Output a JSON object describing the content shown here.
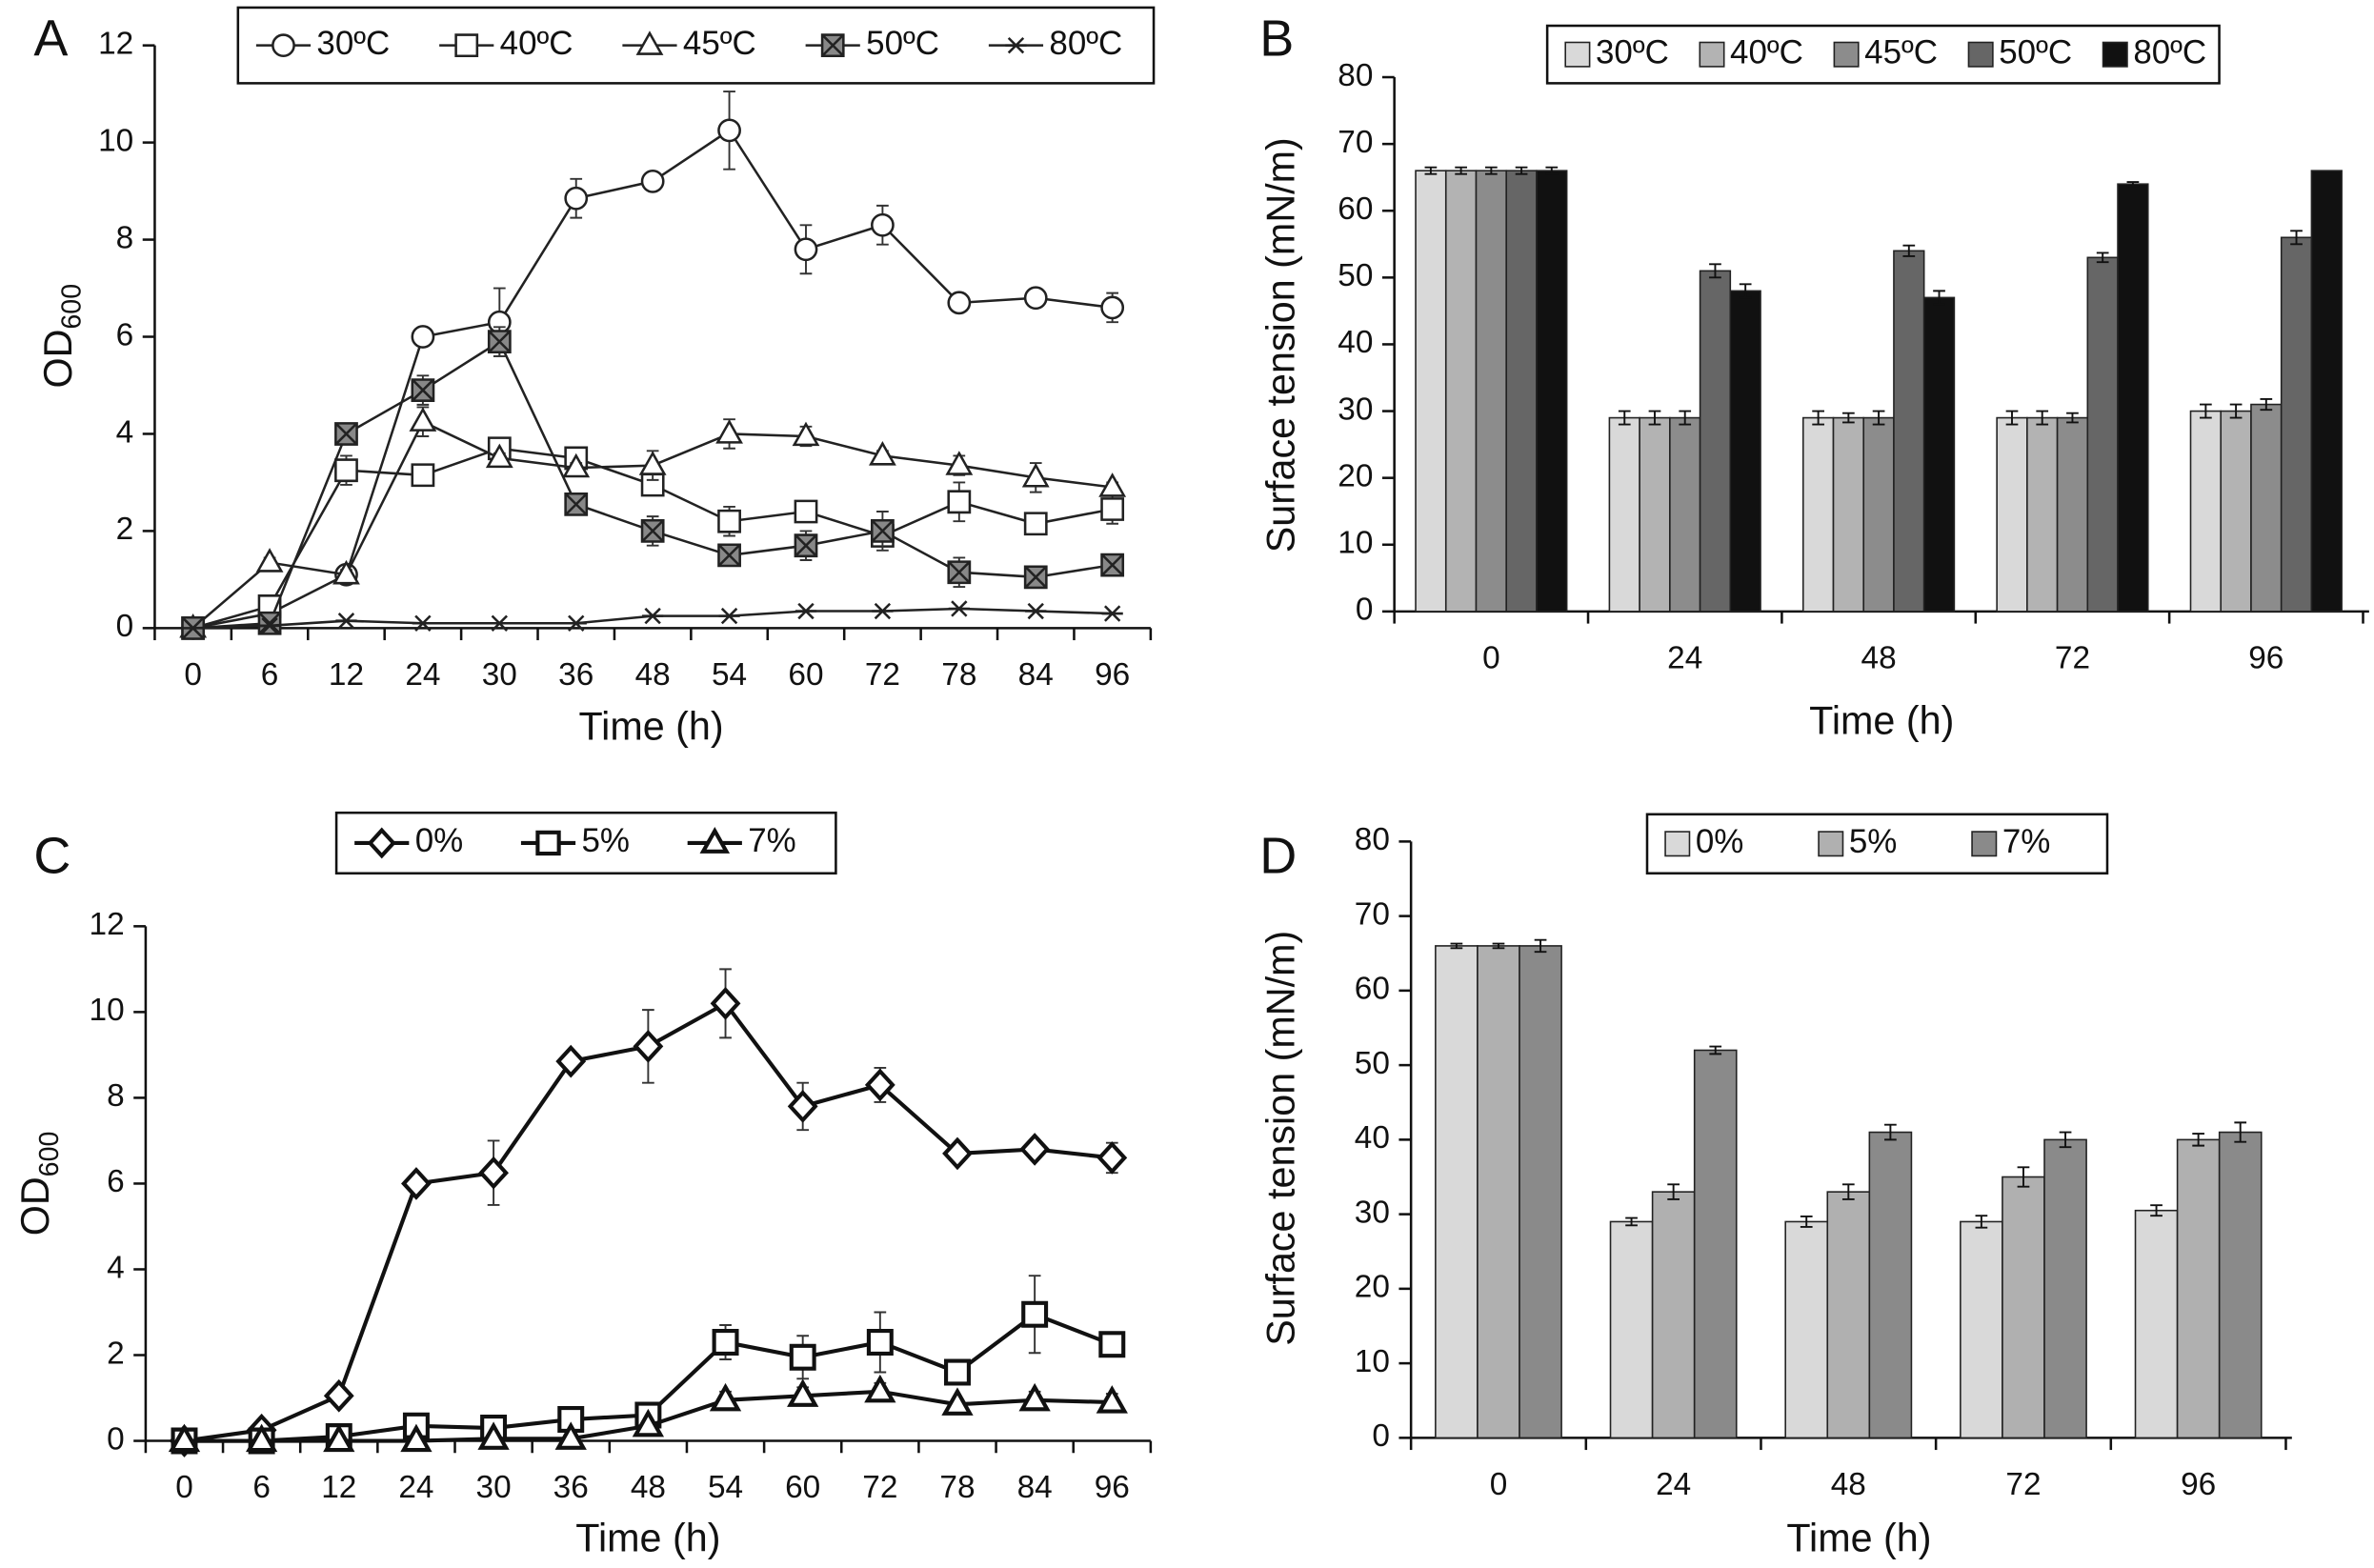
{
  "chart_data": [
    {
      "type": "line",
      "panel": "A",
      "ylabel": "OD",
      "ylabel_subscript": "600",
      "xlabel": "Time (h)",
      "categories": [
        "0",
        "6",
        "12",
        "24",
        "30",
        "36",
        "48",
        "54",
        "60",
        "72",
        "78",
        "84",
        "96"
      ],
      "ylim": [
        0,
        12
      ],
      "yticks": [
        0,
        2,
        4,
        6,
        8,
        10,
        12
      ],
      "series": [
        {
          "name": "30ºC",
          "color": "#222222",
          "marker": "circle",
          "values": [
            0,
            0.3,
            1.1,
            6.0,
            6.3,
            8.85,
            9.2,
            10.25,
            7.8,
            8.3,
            6.7,
            6.8,
            6.6
          ],
          "errors": [
            0,
            0.1,
            0.1,
            0.1,
            0.7,
            0.4,
            0.1,
            0.8,
            0.5,
            0.4,
            0.1,
            0.1,
            0.3
          ]
        },
        {
          "name": "40ºC",
          "color": "#222222",
          "marker": "square",
          "values": [
            0,
            0.45,
            3.25,
            3.15,
            3.7,
            3.5,
            2.95,
            2.2,
            2.4,
            1.9,
            2.6,
            2.15,
            2.45
          ],
          "errors": [
            0,
            0.1,
            0.3,
            0.1,
            0.1,
            0.1,
            0.2,
            0.3,
            0.1,
            0.1,
            0.4,
            0.1,
            0.3
          ]
        },
        {
          "name": "45ºC",
          "color": "#222222",
          "marker": "triangle",
          "values": [
            0,
            1.35,
            1.1,
            4.25,
            3.5,
            3.3,
            3.35,
            4.0,
            3.95,
            3.55,
            3.35,
            3.1,
            2.9
          ],
          "errors": [
            0,
            0.1,
            0.1,
            0.3,
            0.1,
            0.1,
            0.3,
            0.3,
            0.2,
            0.1,
            0.2,
            0.3,
            0.1
          ]
        },
        {
          "name": "50ºC",
          "color": "#222222",
          "marker": "square-x",
          "values": [
            0,
            0.1,
            4.0,
            4.9,
            5.9,
            2.55,
            2.0,
            1.5,
            1.7,
            2.0,
            1.15,
            1.05,
            1.3
          ],
          "errors": [
            0,
            0.05,
            0.1,
            0.3,
            0.3,
            0.1,
            0.3,
            0.2,
            0.3,
            0.4,
            0.3,
            0.1,
            0.1
          ]
        },
        {
          "name": "80ºC",
          "color": "#222222",
          "marker": "asterisk",
          "values": [
            0,
            0.05,
            0.15,
            0.1,
            0.1,
            0.1,
            0.25,
            0.25,
            0.35,
            0.35,
            0.4,
            0.35,
            0.3
          ],
          "errors": [
            0,
            0,
            0,
            0,
            0,
            0,
            0,
            0,
            0,
            0,
            0,
            0,
            0
          ]
        }
      ]
    },
    {
      "type": "bar",
      "panel": "B",
      "ylabel": "Surface tension (mN/m)",
      "xlabel": "Time (h)",
      "categories": [
        "0",
        "24",
        "48",
        "72",
        "96"
      ],
      "ylim": [
        0,
        80
      ],
      "yticks": [
        0,
        10,
        20,
        30,
        40,
        50,
        60,
        70,
        80
      ],
      "series": [
        {
          "name": "30ºC",
          "color": "#d9d9d9",
          "values": [
            66,
            29,
            29,
            29,
            30
          ],
          "errors": [
            0.5,
            1,
            1,
            1,
            1
          ]
        },
        {
          "name": "40ºC",
          "color": "#b3b3b3",
          "values": [
            66,
            29,
            29,
            29,
            30
          ],
          "errors": [
            0.5,
            1,
            0.7,
            1,
            1
          ]
        },
        {
          "name": "45ºC",
          "color": "#8c8c8c",
          "values": [
            66,
            29,
            29,
            29,
            31
          ],
          "errors": [
            0.5,
            1,
            1,
            0.7,
            0.8
          ]
        },
        {
          "name": "50ºC",
          "color": "#666666",
          "values": [
            66,
            51,
            54,
            53,
            56
          ],
          "errors": [
            0.5,
            1,
            0.8,
            0.7,
            1
          ]
        },
        {
          "name": "80ºC",
          "color": "#111111",
          "values": [
            66,
            48,
            47,
            64,
            66
          ],
          "errors": [
            0.5,
            1,
            1,
            0.3,
            0
          ]
        }
      ]
    },
    {
      "type": "line",
      "panel": "C",
      "ylabel": "OD",
      "ylabel_subscript": "600",
      "xlabel": "Time (h)",
      "categories": [
        "0",
        "6",
        "12",
        "24",
        "30",
        "36",
        "48",
        "54",
        "60",
        "72",
        "78",
        "84",
        "96"
      ],
      "ylim": [
        0,
        12
      ],
      "yticks": [
        0,
        2,
        4,
        6,
        8,
        10,
        12
      ],
      "series": [
        {
          "name": "0%",
          "color": "#111111",
          "marker": "diamond",
          "values": [
            0,
            0.25,
            1.05,
            6.0,
            6.25,
            8.85,
            9.2,
            10.2,
            7.8,
            8.3,
            6.7,
            6.8,
            6.6
          ],
          "errors": [
            0,
            0,
            0,
            0.1,
            0.75,
            0.1,
            0.85,
            0.8,
            0.55,
            0.4,
            0.1,
            0.15,
            0.35
          ]
        },
        {
          "name": "5%",
          "color": "#111111",
          "marker": "square",
          "values": [
            0,
            0,
            0.1,
            0.35,
            0.3,
            0.5,
            0.6,
            2.3,
            1.95,
            2.3,
            1.6,
            2.95,
            2.25
          ],
          "errors": [
            0,
            0,
            0,
            0,
            0,
            0,
            0,
            0.4,
            0.5,
            0.7,
            0,
            0.9,
            0
          ]
        },
        {
          "name": "7%",
          "color": "#111111",
          "marker": "triangle",
          "values": [
            0,
            0,
            0,
            0,
            0.05,
            0.05,
            0.35,
            0.95,
            1.05,
            1.15,
            0.85,
            0.95,
            0.9
          ],
          "errors": [
            0,
            0,
            0,
            0,
            0,
            0,
            0,
            0.2,
            0.2,
            0.2,
            0,
            0.2,
            0.2
          ]
        }
      ]
    },
    {
      "type": "bar",
      "panel": "D",
      "ylabel": "Surface tension (mN/m)",
      "xlabel": "Time (h)",
      "categories": [
        "0",
        "24",
        "48",
        "72",
        "96"
      ],
      "ylim": [
        0,
        80
      ],
      "yticks": [
        0,
        10,
        20,
        30,
        40,
        50,
        60,
        70,
        80
      ],
      "series": [
        {
          "name": "0%",
          "color": "#d9d9d9",
          "values": [
            66,
            29,
            29,
            29,
            30.5
          ],
          "errors": [
            0.3,
            0.5,
            0.7,
            0.8,
            0.7
          ]
        },
        {
          "name": "5%",
          "color": "#b0b0b0",
          "values": [
            66,
            33,
            33,
            35,
            40
          ],
          "errors": [
            0.3,
            1,
            1,
            1.3,
            0.8
          ]
        },
        {
          "name": "7%",
          "color": "#8a8a8a",
          "values": [
            66,
            52,
            41,
            40,
            41
          ],
          "errors": [
            0.8,
            0.5,
            1,
            1,
            1.3
          ]
        }
      ]
    }
  ]
}
